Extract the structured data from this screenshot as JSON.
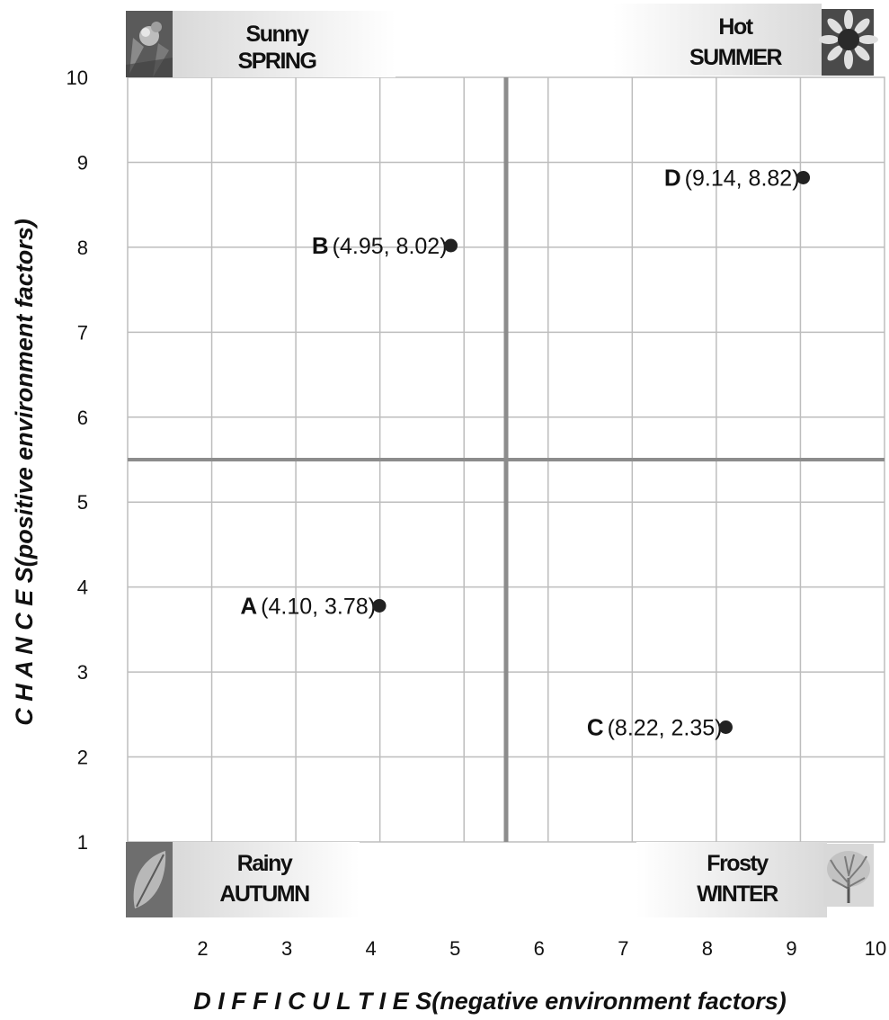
{
  "chart_data": {
    "type": "scatter",
    "title": "",
    "xlabel": "D I F F I C U L T I E S(negative environment factors)",
    "ylabel": "C H A N C E S(positive environment factors)",
    "xlim": [
      1,
      10
    ],
    "ylim": [
      1,
      10
    ],
    "x_ticks": [
      "2",
      "3",
      "4",
      "5",
      "6",
      "7",
      "8",
      "9",
      "10"
    ],
    "y_ticks": [
      "1",
      "2",
      "3",
      "4",
      "5",
      "6",
      "7",
      "8",
      "9",
      "10"
    ],
    "grid": true,
    "divider": {
      "x": 5.5,
      "y": 5.5
    },
    "points": [
      {
        "letter": "A",
        "coords": "(4.10, 3.78)",
        "x": 4.1,
        "y": 3.78
      },
      {
        "letter": "B",
        "coords": "(4.95, 8.02)",
        "x": 4.95,
        "y": 8.02
      },
      {
        "letter": "C",
        "coords": "(8.22, 2.35)",
        "x": 8.22,
        "y": 2.35
      },
      {
        "letter": "D",
        "coords": "(9.14, 8.82)",
        "x": 9.14,
        "y": 8.82
      }
    ],
    "quadrant_labels": [
      {
        "position": "top-left",
        "line1": "Sunny",
        "line2": "SPRING",
        "icon": "flower-icon"
      },
      {
        "position": "top-right",
        "line1": "Hot",
        "line2": "SUMMER",
        "icon": "sunflower-icon"
      },
      {
        "position": "bottom-left",
        "line1": "Rainy",
        "line2": "AUTUMN",
        "icon": "leaf-icon"
      },
      {
        "position": "bottom-right",
        "line1": "Frosty",
        "line2": "WINTER",
        "icon": "bare-tree-icon"
      }
    ],
    "colors": {
      "grid": "#bdbdbd",
      "divider": "#8c8c8c",
      "point": "#222222",
      "label_bg": "#e6e6e6"
    }
  }
}
